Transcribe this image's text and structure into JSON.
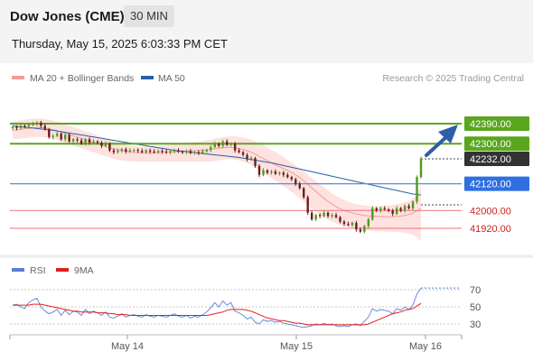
{
  "header": {
    "instrument": "Dow Jones (CME)",
    "interval": "30 MIN",
    "datetime": "Thursday, May 15, 2025 6:03:33 PM CET"
  },
  "legend": {
    "ma20": {
      "label": "MA 20 + Bollinger Bands",
      "color": "#f59a96"
    },
    "ma50": {
      "label": "MA 50",
      "color": "#2b5fa6"
    },
    "copyright": "Research © 2025 Trading Central"
  },
  "rsi_legend": {
    "rsi": {
      "label": "RSI",
      "color": "#5b7fd6"
    },
    "ma9": {
      "label": "9MA",
      "color": "#e02020"
    }
  },
  "chart_data": [
    {
      "type": "candlestick",
      "title": "Dow Jones (CME)",
      "interval": "30 MIN",
      "ylim": [
        41860,
        42420
      ],
      "x_ticks": [
        "May 14",
        "May 15",
        "May 16"
      ],
      "current_price": 42232.0,
      "levels": [
        {
          "value": 42390.0,
          "label": "42390.00",
          "kind": "resistance"
        },
        {
          "value": 42300.0,
          "label": "42300.00",
          "kind": "resistance"
        },
        {
          "value": 42232.0,
          "label": "42232.00",
          "kind": "last"
        },
        {
          "value": 42120.0,
          "label": "42120.00",
          "kind": "pivot"
        },
        {
          "value": 42000.0,
          "label": "42000.00",
          "kind": "support"
        },
        {
          "value": 41920.0,
          "label": "41920.00",
          "kind": "support"
        }
      ],
      "close": [
        42375,
        42370,
        42380,
        42378,
        42385,
        42388,
        42395,
        42380,
        42365,
        42330,
        42335,
        42345,
        42320,
        42340,
        42310,
        42320,
        42315,
        42300,
        42320,
        42305,
        42310,
        42305,
        42290,
        42300,
        42270,
        42262,
        42268,
        42275,
        42265,
        42270,
        42272,
        42268,
        42262,
        42270,
        42265,
        42262,
        42268,
        42264,
        42260,
        42266,
        42270,
        42264,
        42262,
        42266,
        42258,
        42262,
        42258,
        42266,
        42272,
        42285,
        42300,
        42290,
        42310,
        42295,
        42300,
        42270,
        42262,
        42250,
        42230,
        42235,
        42200,
        42160,
        42180,
        42170,
        42175,
        42165,
        42170,
        42160,
        42150,
        42140,
        42120,
        42100,
        42060,
        41990,
        41960,
        41980,
        41975,
        41990,
        41975,
        41980,
        41970,
        41950,
        41940,
        41935,
        41945,
        41915,
        41905,
        41930,
        41960,
        42010,
        42000,
        42010,
        42005,
        42000,
        41985,
        42010,
        42000,
        42020,
        42010,
        42040,
        42150,
        42232
      ],
      "ma20": [
        42360,
        42362,
        42365,
        42367,
        42369,
        42371,
        42373,
        42372,
        42370,
        42366,
        42362,
        42358,
        42352,
        42347,
        42341,
        42336,
        42330,
        42324,
        42318,
        42312,
        42306,
        42300,
        42294,
        42288,
        42282,
        42277,
        42273,
        42269,
        42266,
        42263,
        42261,
        42260,
        42259,
        42259,
        42259,
        42259,
        42260,
        42261,
        42262,
        42263,
        42264,
        42265,
        42266,
        42267,
        42268,
        42269,
        42270,
        42271,
        42272,
        42274,
        42277,
        42280,
        42282,
        42283,
        42283,
        42281,
        42278,
        42274,
        42268,
        42262,
        42253,
        42243,
        42233,
        42223,
        42214,
        42205,
        42196,
        42188,
        42180,
        42171,
        42160,
        42148,
        42134,
        42118,
        42102,
        42086,
        42070,
        42055,
        42041,
        42028,
        42017,
        42008,
        42000,
        41994,
        41989,
        41985,
        41981,
        41978,
        41976,
        41975,
        41974,
        41973,
        41972,
        41972,
        41972,
        41973,
        41975,
        41978,
        41982,
        41988,
        41998,
        42010
      ],
      "bb_upper": [
        42400,
        42402,
        42405,
        42408,
        42410,
        42412,
        42414,
        42413,
        42411,
        42407,
        42403,
        42398,
        42392,
        42386,
        42380,
        42374,
        42368,
        42362,
        42356,
        42350,
        42343,
        42336,
        42329,
        42322,
        42315,
        42308,
        42303,
        42298,
        42294,
        42291,
        42289,
        42288,
        42287,
        42287,
        42288,
        42289,
        42290,
        42292,
        42294,
        42296,
        42298,
        42300,
        42302,
        42304,
        42306,
        42308,
        42310,
        42312,
        42315,
        42318,
        42322,
        42326,
        42330,
        42332,
        42333,
        42333,
        42331,
        42328,
        42323,
        42317,
        42310,
        42302,
        42293,
        42283,
        42273,
        42262,
        42251,
        42240,
        42228,
        42215,
        42202,
        42188,
        42174,
        42160,
        42146,
        42132,
        42118,
        42104,
        42090,
        42077,
        42066,
        42056,
        42047,
        42040,
        42034,
        42029,
        42025,
        42022,
        42020,
        42019,
        42019,
        42020,
        42021,
        42023,
        42025,
        42028,
        42032,
        42037,
        42043,
        42052,
        42070,
        42120
      ],
      "bb_lower": [
        42320,
        42321,
        42323,
        42325,
        42327,
        42329,
        42331,
        42330,
        42328,
        42324,
        42320,
        42316,
        42310,
        42304,
        42298,
        42292,
        42286,
        42280,
        42274,
        42268,
        42262,
        42256,
        42250,
        42244,
        42238,
        42232,
        42228,
        42225,
        42223,
        42221,
        42220,
        42220,
        42220,
        42220,
        42220,
        42220,
        42220,
        42220,
        42220,
        42220,
        42220,
        42220,
        42220,
        42220,
        42220,
        42220,
        42220,
        42220,
        42220,
        42220,
        42222,
        42225,
        42228,
        42230,
        42230,
        42228,
        42225,
        42220,
        42213,
        42205,
        42194,
        42182,
        42170,
        42158,
        42146,
        42134,
        42122,
        42110,
        42097,
        42084,
        42070,
        42055,
        42040,
        42024,
        42009,
        41995,
        41982,
        41970,
        41959,
        41950,
        41942,
        41935,
        41930,
        41926,
        41922,
        41918,
        41915,
        41912,
        41910,
        41909,
        41908,
        41907,
        41906,
        41905,
        41904,
        41903,
        41902,
        41900,
        41896,
        41890,
        41880,
        41865
      ],
      "ma50": [
        42380,
        42378,
        42376,
        42374,
        42372,
        42370,
        42368,
        42366,
        42364,
        42362,
        42360,
        42357,
        42354,
        42351,
        42348,
        42345,
        42342,
        42339,
        42336,
        42333,
        42330,
        42327,
        42324,
        42321,
        42318,
        42315,
        42312,
        42309,
        42306,
        42303,
        42300,
        42297,
        42294,
        42291,
        42288,
        42285,
        42282,
        42279,
        42276,
        42273,
        42270,
        42268,
        42266,
        42264,
        42262,
        42260,
        42258,
        42256,
        42254,
        42252,
        42250,
        42248,
        42246,
        42244,
        42242,
        42240,
        42238,
        42235,
        42232,
        42229,
        42226,
        42223,
        42220,
        42217,
        42214,
        42210,
        42206,
        42202,
        42198,
        42194,
        42190,
        42186,
        42182,
        42178,
        42174,
        42170,
        42166,
        42162,
        42158,
        42154,
        42150,
        42146,
        42142,
        42138,
        42134,
        42130,
        42126,
        42122,
        42118,
        42114,
        42110,
        42106,
        42102,
        42098,
        42094,
        42090,
        42086,
        42082,
        42078,
        42074,
        42072,
        42070
      ]
    },
    {
      "type": "line",
      "title": "RSI",
      "ylim": [
        20,
        80
      ],
      "y_ticks": [
        70,
        50,
        30
      ],
      "series": [
        {
          "name": "RSI",
          "values": [
            52,
            53,
            50,
            48,
            55,
            58,
            60,
            50,
            45,
            42,
            44,
            47,
            40,
            46,
            41,
            45,
            44,
            40,
            47,
            42,
            45,
            43,
            40,
            44,
            38,
            37,
            39,
            42,
            38,
            40,
            41,
            39,
            38,
            41,
            39,
            38,
            40,
            39,
            38,
            40,
            42,
            39,
            38,
            40,
            37,
            39,
            38,
            41,
            44,
            49,
            55,
            50,
            57,
            52,
            55,
            45,
            43,
            40,
            36,
            38,
            32,
            30,
            35,
            33,
            34,
            32,
            33,
            31,
            30,
            29,
            28,
            27,
            26,
            27,
            28,
            30,
            29,
            31,
            29,
            30,
            28,
            27,
            28,
            27,
            29,
            30,
            28,
            33,
            38,
            48,
            45,
            47,
            46,
            45,
            42,
            48,
            46,
            50,
            47,
            52,
            65,
            72
          ]
        },
        {
          "name": "9MA",
          "values": [
            52,
            52,
            52,
            52,
            52,
            53,
            53,
            53,
            52,
            51,
            50,
            49,
            48,
            47,
            46,
            45,
            45,
            44,
            44,
            44,
            44,
            43,
            43,
            43,
            42,
            42,
            41,
            41,
            41,
            40,
            40,
            40,
            40,
            40,
            40,
            40,
            40,
            40,
            40,
            40,
            40,
            40,
            40,
            40,
            40,
            40,
            40,
            40,
            40,
            41,
            42,
            43,
            44,
            46,
            47,
            47,
            47,
            47,
            46,
            45,
            43,
            41,
            39,
            37,
            36,
            35,
            34,
            34,
            33,
            32,
            31,
            31,
            30,
            29,
            29,
            29,
            29,
            29,
            29,
            29,
            29,
            29,
            29,
            29,
            29,
            29,
            29,
            29,
            30,
            32,
            34,
            36,
            38,
            40,
            42,
            43,
            44,
            46,
            47,
            48,
            51,
            54
          ]
        }
      ]
    }
  ]
}
